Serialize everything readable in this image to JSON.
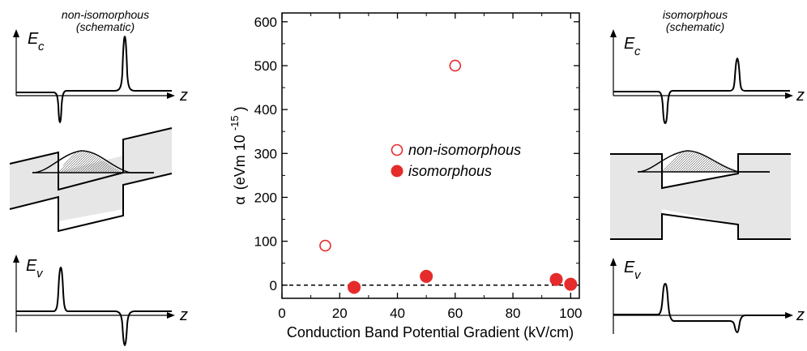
{
  "left_panel": {
    "title_line1": "non-isomorphous",
    "title_line2": "(schematic)",
    "ec_symbol": "E",
    "ec_subscript": "c",
    "ev_symbol": "E",
    "ev_subscript": "v",
    "z_top": "z",
    "z_bottom": "z"
  },
  "right_panel": {
    "title_line1": "isomorphous",
    "title_line2": "(schematic)",
    "ec_symbol": "E",
    "ec_subscript": "c",
    "ev_symbol": "E",
    "ev_subscript": "v",
    "z_top": "z",
    "z_bottom": "z"
  },
  "colors": {
    "marker": "#e52b2b",
    "axis": "#000000",
    "fill_gray": "#e6e6e6"
  },
  "chart_data": {
    "type": "scatter",
    "xlabel": "Conduction Band Potential Gradient (kV/cm)",
    "ylabel_symbol": "α",
    "ylabel_units": "(eVm 10",
    "ylabel_exponent": "-15",
    "ylabel_close": ")",
    "xlim": [
      0,
      103
    ],
    "ylim": [
      -30,
      620
    ],
    "xticks": [
      0,
      20,
      40,
      60,
      80,
      100
    ],
    "yticks": [
      0,
      100,
      200,
      300,
      400,
      500,
      600
    ],
    "reference_line_y": 0,
    "legend_position": "center-right",
    "series": [
      {
        "name": "non-isomorphous",
        "marker": "open-circle",
        "points": [
          {
            "x": 15,
            "y": 90
          },
          {
            "x": 60,
            "y": 500
          }
        ]
      },
      {
        "name": "isomorphous",
        "marker": "filled-circle",
        "points": [
          {
            "x": 25,
            "y": -5
          },
          {
            "x": 50,
            "y": 20
          },
          {
            "x": 95,
            "y": 13
          },
          {
            "x": 100,
            "y": 2
          }
        ]
      }
    ]
  }
}
